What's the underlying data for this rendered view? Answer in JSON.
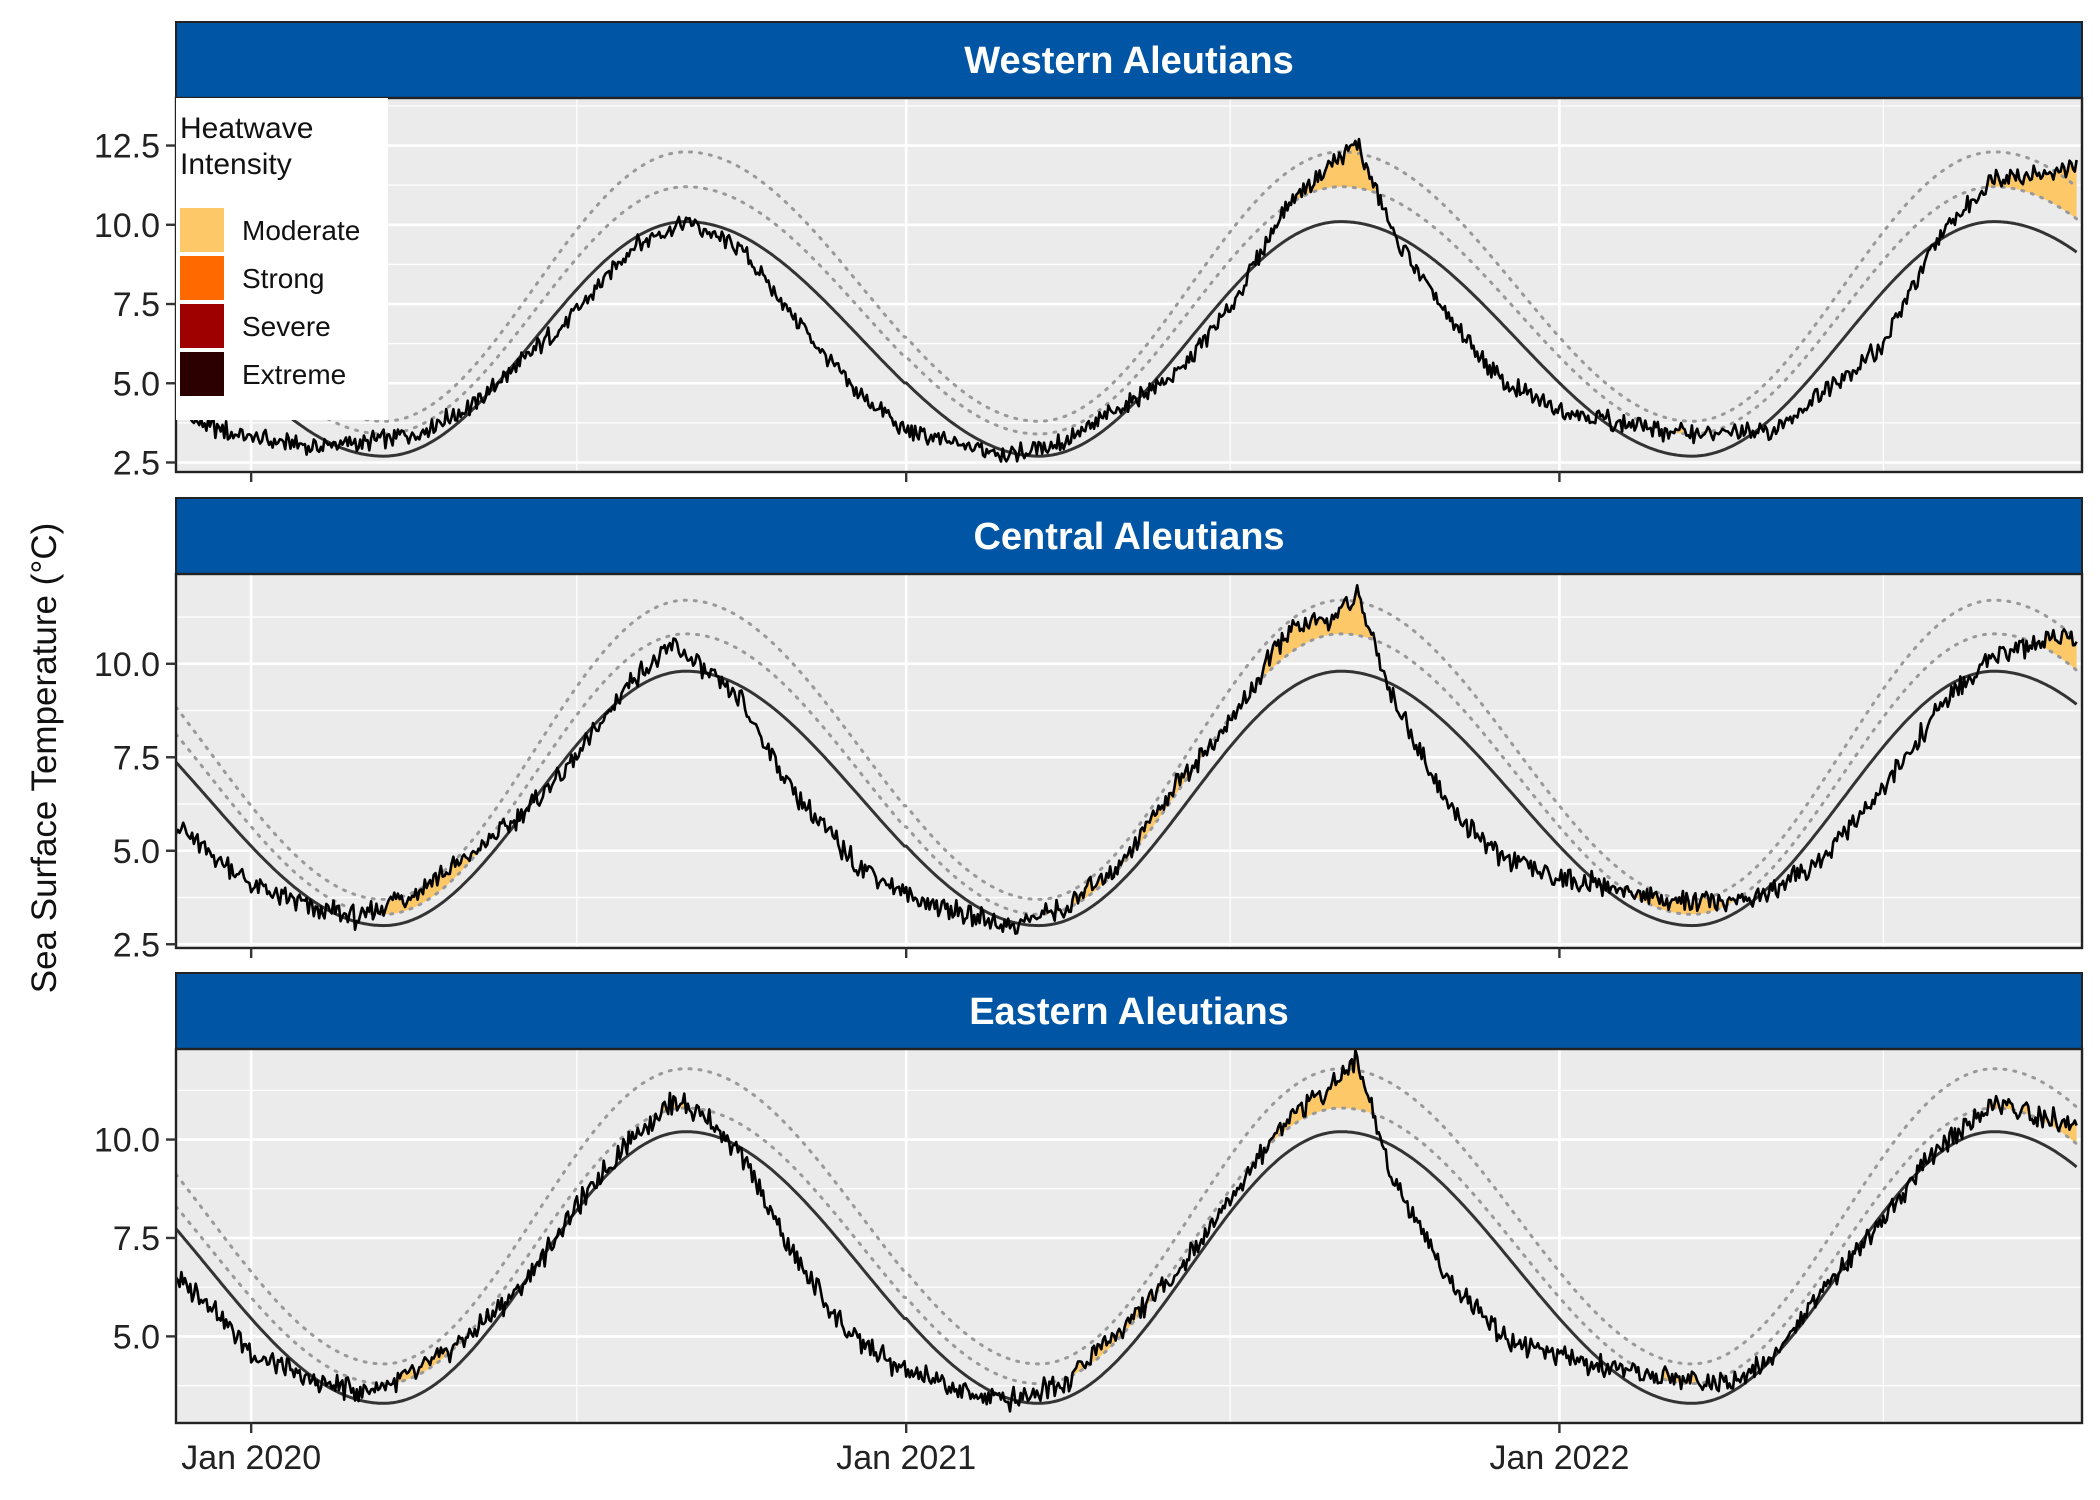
{
  "chart_data": {
    "type": "line",
    "ylabel": "Sea Surface Temperature (°C)",
    "xlabel": "",
    "x_range": [
      "2019-11-20",
      "2022-10-20"
    ],
    "x_ticks": [
      {
        "date": "2020-01-01",
        "label": "Jan 2020"
      },
      {
        "date": "2021-01-01",
        "label": "Jan 2021"
      },
      {
        "date": "2022-01-01",
        "label": "Jan 2022"
      }
    ],
    "x_minor_ticks": [
      "2020-07-01",
      "2021-07-01",
      "2022-07-01"
    ],
    "grid": true,
    "legend": {
      "title_lines": [
        "Heatwave",
        "Intensity"
      ],
      "placement": "top-left",
      "entries": [
        {
          "label": "Moderate",
          "color": "#FDC867"
        },
        {
          "label": "Strong",
          "color": "#FF6900"
        },
        {
          "label": "Severe",
          "color": "#9E0000"
        },
        {
          "label": "Extreme",
          "color": "#2D0000"
        }
      ]
    },
    "series_styles": {
      "sst": {
        "color": "#000000"
      },
      "climatology": {
        "color": "#333333"
      },
      "threshold": {
        "color": "#999999",
        "dash": "dotted"
      }
    },
    "colors": {
      "strip": "#0055A4",
      "panel_bg": "#EBEBEB",
      "gridline": "#FFFFFF"
    },
    "panels": [
      {
        "title": "Western Aleutians",
        "ylim": [
          2.2,
          14.0
        ],
        "y_ticks": [
          2.5,
          5.0,
          7.5,
          10.0,
          12.5
        ],
        "y_tick_labels": [
          "2.5",
          "5.0",
          "7.5",
          "10.0",
          "12.5"
        ],
        "clim_min": 2.7,
        "clim_max": 10.1,
        "threshold_upper_min": 3.8,
        "threshold_upper_max": 12.3,
        "threshold_lower_min": 3.4,
        "threshold_lower_max": 11.2,
        "sst_points": [
          [
            "2019-11-20",
            4.1
          ],
          [
            "2019-12-10",
            3.6
          ],
          [
            "2020-01-01",
            3.3
          ],
          [
            "2020-02-01",
            3.0
          ],
          [
            "2020-03-01",
            3.1
          ],
          [
            "2020-04-01",
            3.4
          ],
          [
            "2020-05-01",
            4.2
          ],
          [
            "2020-06-01",
            5.7
          ],
          [
            "2020-07-01",
            7.3
          ],
          [
            "2020-08-01",
            9.3
          ],
          [
            "2020-09-01",
            10.1
          ],
          [
            "2020-10-01",
            9.2
          ],
          [
            "2020-11-01",
            7.0
          ],
          [
            "2020-12-01",
            4.9
          ],
          [
            "2021-01-01",
            3.5
          ],
          [
            "2021-02-01",
            3.0
          ],
          [
            "2021-03-01",
            2.8
          ],
          [
            "2021-04-01",
            3.2
          ],
          [
            "2021-05-01",
            4.2
          ],
          [
            "2021-06-01",
            5.3
          ],
          [
            "2021-07-01",
            7.3
          ],
          [
            "2021-08-01",
            10.6
          ],
          [
            "2021-08-20",
            11.6
          ],
          [
            "2021-09-10",
            12.6
          ],
          [
            "2021-10-01",
            9.6
          ],
          [
            "2021-11-01",
            7.0
          ],
          [
            "2021-12-01",
            5.0
          ],
          [
            "2022-01-01",
            4.2
          ],
          [
            "2022-02-01",
            3.8
          ],
          [
            "2022-03-01",
            3.5
          ],
          [
            "2022-04-01",
            3.4
          ],
          [
            "2022-05-01",
            3.5
          ],
          [
            "2022-06-01",
            4.9
          ],
          [
            "2022-07-01",
            6.2
          ],
          [
            "2022-08-01",
            9.6
          ],
          [
            "2022-09-01",
            11.5
          ],
          [
            "2022-10-01",
            11.6
          ],
          [
            "2022-10-17",
            11.9
          ]
        ]
      },
      {
        "title": "Central Aleutians",
        "ylim": [
          2.4,
          12.4
        ],
        "y_ticks": [
          2.5,
          5.0,
          7.5,
          10.0
        ],
        "y_tick_labels": [
          "2.5",
          "5.0",
          "7.5",
          "10.0"
        ],
        "clim_min": 3.0,
        "clim_max": 9.8,
        "threshold_upper_min": 3.7,
        "threshold_upper_max": 11.7,
        "threshold_lower_min": 3.3,
        "threshold_lower_max": 10.8,
        "sst_points": [
          [
            "2019-11-20",
            5.7
          ],
          [
            "2019-12-10",
            4.9
          ],
          [
            "2020-01-01",
            4.1
          ],
          [
            "2020-02-01",
            3.5
          ],
          [
            "2020-03-01",
            3.2
          ],
          [
            "2020-04-01",
            3.9
          ],
          [
            "2020-05-01",
            4.8
          ],
          [
            "2020-06-01",
            6.0
          ],
          [
            "2020-07-01",
            7.5
          ],
          [
            "2020-08-01",
            9.6
          ],
          [
            "2020-08-25",
            10.5
          ],
          [
            "2020-09-10",
            9.8
          ],
          [
            "2020-10-01",
            9.0
          ],
          [
            "2020-11-01",
            6.4
          ],
          [
            "2020-12-01",
            4.8
          ],
          [
            "2021-01-01",
            3.8
          ],
          [
            "2021-02-01",
            3.3
          ],
          [
            "2021-03-01",
            3.0
          ],
          [
            "2021-04-01",
            3.5
          ],
          [
            "2021-05-01",
            4.7
          ],
          [
            "2021-06-01",
            6.8
          ],
          [
            "2021-07-01",
            8.4
          ],
          [
            "2021-08-01",
            10.8
          ],
          [
            "2021-08-25",
            11.2
          ],
          [
            "2021-09-10",
            11.8
          ],
          [
            "2021-10-01",
            9.0
          ],
          [
            "2021-11-01",
            6.1
          ],
          [
            "2021-12-01",
            4.8
          ],
          [
            "2022-01-01",
            4.3
          ],
          [
            "2022-02-01",
            4.0
          ],
          [
            "2022-03-01",
            3.7
          ],
          [
            "2022-04-01",
            3.6
          ],
          [
            "2022-05-01",
            3.9
          ],
          [
            "2022-06-01",
            5.0
          ],
          [
            "2022-07-01",
            6.6
          ],
          [
            "2022-08-01",
            8.8
          ],
          [
            "2022-09-01",
            10.2
          ],
          [
            "2022-10-01",
            10.6
          ],
          [
            "2022-10-17",
            10.8
          ]
        ]
      },
      {
        "title": "Eastern Aleutians",
        "ylim": [
          2.8,
          12.3
        ],
        "y_ticks": [
          5.0,
          7.5,
          10.0
        ],
        "y_tick_labels": [
          "5.0",
          "7.5",
          "10.0"
        ],
        "clim_min": 3.3,
        "clim_max": 10.2,
        "threshold_upper_min": 4.3,
        "threshold_upper_max": 11.8,
        "threshold_lower_min": 3.8,
        "threshold_lower_max": 10.8,
        "sst_points": [
          [
            "2019-11-20",
            6.5
          ],
          [
            "2019-12-10",
            5.8
          ],
          [
            "2020-01-01",
            4.6
          ],
          [
            "2020-02-01",
            3.9
          ],
          [
            "2020-03-01",
            3.6
          ],
          [
            "2020-04-01",
            4.0
          ],
          [
            "2020-05-01",
            5.0
          ],
          [
            "2020-06-01",
            6.3
          ],
          [
            "2020-07-01",
            8.3
          ],
          [
            "2020-08-01",
            10.1
          ],
          [
            "2020-08-25",
            11.0
          ],
          [
            "2020-09-15",
            10.4
          ],
          [
            "2020-10-01",
            9.6
          ],
          [
            "2020-11-01",
            6.9
          ],
          [
            "2020-12-01",
            5.0
          ],
          [
            "2021-01-01",
            4.1
          ],
          [
            "2021-02-01",
            3.6
          ],
          [
            "2021-03-01",
            3.4
          ],
          [
            "2021-04-01",
            3.9
          ],
          [
            "2021-05-01",
            5.2
          ],
          [
            "2021-06-01",
            6.6
          ],
          [
            "2021-07-01",
            8.5
          ],
          [
            "2021-08-01",
            10.5
          ],
          [
            "2021-09-01",
            11.6
          ],
          [
            "2021-09-10",
            12.0
          ],
          [
            "2021-10-01",
            8.9
          ],
          [
            "2021-11-01",
            6.4
          ],
          [
            "2021-12-01",
            5.0
          ],
          [
            "2022-01-01",
            4.5
          ],
          [
            "2022-02-01",
            4.1
          ],
          [
            "2022-03-01",
            4.0
          ],
          [
            "2022-04-01",
            3.8
          ],
          [
            "2022-05-01",
            4.5
          ],
          [
            "2022-06-01",
            6.4
          ],
          [
            "2022-07-01",
            8.0
          ],
          [
            "2022-08-01",
            9.8
          ],
          [
            "2022-09-01",
            10.9
          ],
          [
            "2022-10-01",
            10.5
          ],
          [
            "2022-10-17",
            10.4
          ]
        ]
      }
    ]
  }
}
